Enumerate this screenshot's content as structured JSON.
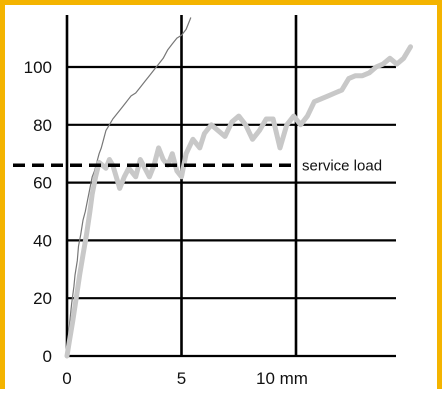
{
  "chart_data": {
    "type": "line",
    "title": "",
    "xlabel": "",
    "ylabel": "",
    "xlim": [
      0,
      15
    ],
    "ylim": [
      0,
      115
    ],
    "x_ticks": [
      {
        "value": 0,
        "label": "0"
      },
      {
        "value": 5,
        "label": "5"
      },
      {
        "value": 10,
        "label": "10 mm"
      }
    ],
    "y_ticks": [
      0,
      20,
      40,
      60,
      80,
      100
    ],
    "x_gridlines": [
      0,
      5,
      10
    ],
    "y_gridlines": [
      0,
      20,
      40,
      60,
      80,
      100
    ],
    "grid": true,
    "reference_line": {
      "value": 66,
      "label": "service load",
      "style": "dashed"
    },
    "series": [
      {
        "color": "#777777",
        "x": [
          0,
          0.05,
          0.1,
          0.15,
          0.2,
          0.3,
          0.35,
          0.45,
          0.5,
          0.6,
          0.7,
          0.8,
          0.9,
          1.0,
          1.1,
          1.2,
          1.3,
          1.4,
          1.5,
          1.6,
          1.7,
          1.85,
          2.0,
          2.2,
          2.4,
          2.6,
          2.8,
          3.0,
          3.2,
          3.4,
          3.6,
          3.8,
          4.0,
          4.2,
          4.4,
          4.6,
          4.8,
          5.0,
          5.2,
          5.4
        ],
        "y": [
          0,
          5,
          10,
          14,
          18,
          24,
          28,
          33,
          38,
          42,
          47,
          50,
          54,
          58,
          62,
          64,
          67,
          70,
          72,
          75,
          78,
          80,
          82,
          84,
          86,
          88,
          90,
          91,
          93,
          95,
          97,
          99,
          101,
          103,
          106,
          108,
          110,
          111,
          113,
          117
        ]
      },
      {
        "color": "#c8c8c8",
        "x": [
          0,
          0.1,
          0.25,
          0.4,
          0.55,
          0.7,
          0.85,
          1.0,
          1.1,
          1.25,
          1.4,
          1.55,
          1.7,
          1.85,
          2.0,
          2.3,
          2.5,
          2.7,
          3.0,
          3.2,
          3.4,
          3.6,
          3.8,
          4.0,
          4.2,
          4.4,
          4.6,
          4.8,
          5.0,
          5.2,
          5.5,
          5.8,
          6.0,
          6.3,
          6.6,
          6.9,
          7.2,
          7.5,
          7.8,
          8.1,
          8.4,
          8.7,
          9.0,
          9.3,
          9.6,
          9.9,
          10.2,
          10.5,
          10.8,
          11.1,
          11.4,
          11.7,
          12.0,
          12.3,
          12.6,
          12.9,
          13.2,
          13.5,
          13.8,
          14.1,
          14.4,
          14.7,
          15.0
        ],
        "y": [
          0,
          5,
          12,
          20,
          28,
          35,
          42,
          50,
          56,
          62,
          67,
          66,
          65,
          68,
          66,
          58,
          62,
          65,
          62,
          68,
          65,
          62,
          66,
          72,
          68,
          66,
          70,
          64,
          62,
          70,
          75,
          72,
          77,
          80,
          78,
          76,
          81,
          83,
          80,
          75,
          78,
          82,
          82,
          72,
          80,
          83,
          80,
          83,
          88,
          89,
          90,
          91,
          92,
          96,
          97,
          97,
          98,
          100,
          101,
          103,
          101,
          103,
          107
        ]
      }
    ]
  }
}
